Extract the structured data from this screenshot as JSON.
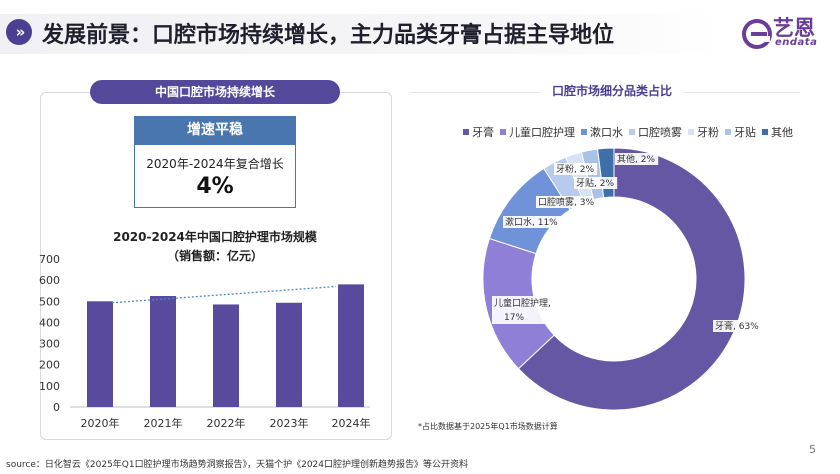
{
  "header": {
    "title": "发展前景：口腔市场持续增长，主力品类牙膏占据主导地位",
    "chevron": "»"
  },
  "logo": {
    "cn": "艺恩",
    "en": "endata"
  },
  "left_panel": {
    "pill_title": "中国口腔市场持续增长",
    "growth_box": {
      "heading": "增速平稳",
      "label": "2020年-2024年复合增长",
      "value": "4%"
    },
    "bar_title": "2020-2024年中国口腔护理市场规模",
    "bar_subtitle": "（销售额：亿元）"
  },
  "right_panel": {
    "pie_title": "口腔市场细分品类占比",
    "footnote": "*占比数据基于2025年Q1市场数据计算"
  },
  "footer": {
    "source": "source：日化智云《2025年Q1口腔护理市场趋势洞察报告》，天猫个护《2024口腔护理创新趋势报告》等公开资料",
    "page_number": "5"
  },
  "colors": {
    "accent": "#54489a",
    "bar": "#5a4a9e",
    "trend": "#4a8bc4",
    "growth_head": "#4a76b0"
  },
  "chart_data": [
    {
      "type": "bar",
      "title": "2020-2024年中国口腔护理市场规模",
      "ylabel": "销售额：亿元",
      "categories": [
        "2020年",
        "2021年",
        "2022年",
        "2023年",
        "2024年"
      ],
      "values": [
        500,
        525,
        485,
        493,
        580
      ],
      "ylim": [
        0,
        700
      ],
      "yticks": [
        0,
        100,
        200,
        300,
        400,
        500,
        600,
        700
      ],
      "trendline": {
        "style": "dotted",
        "start": 493,
        "end": 570
      }
    },
    {
      "type": "pie",
      "title": "口腔市场细分品类占比",
      "donut": true,
      "slices": [
        {
          "name": "牙膏",
          "value": 63,
          "label": "牙膏, 63%",
          "color": "#6557a3"
        },
        {
          "name": "儿童口腔护理",
          "value": 17,
          "label": "儿童口腔护理, 17%",
          "color": "#8f7fd6"
        },
        {
          "name": "漱口水",
          "value": 11,
          "label": "漱口水, 11%",
          "color": "#7092d8"
        },
        {
          "name": "口腔喷雾",
          "value": 3,
          "label": "口腔喷雾, 3%",
          "color": "#b6cbed"
        },
        {
          "name": "牙粉",
          "value": 2,
          "label": "牙粉, 2%",
          "color": "#d6e3f5"
        },
        {
          "name": "牙贴",
          "value": 2,
          "label": "牙贴, 2%",
          "color": "#a9c2e8"
        },
        {
          "name": "其他",
          "value": 2,
          "label": "其他, 2%",
          "color": "#3f6fa8"
        }
      ]
    }
  ]
}
